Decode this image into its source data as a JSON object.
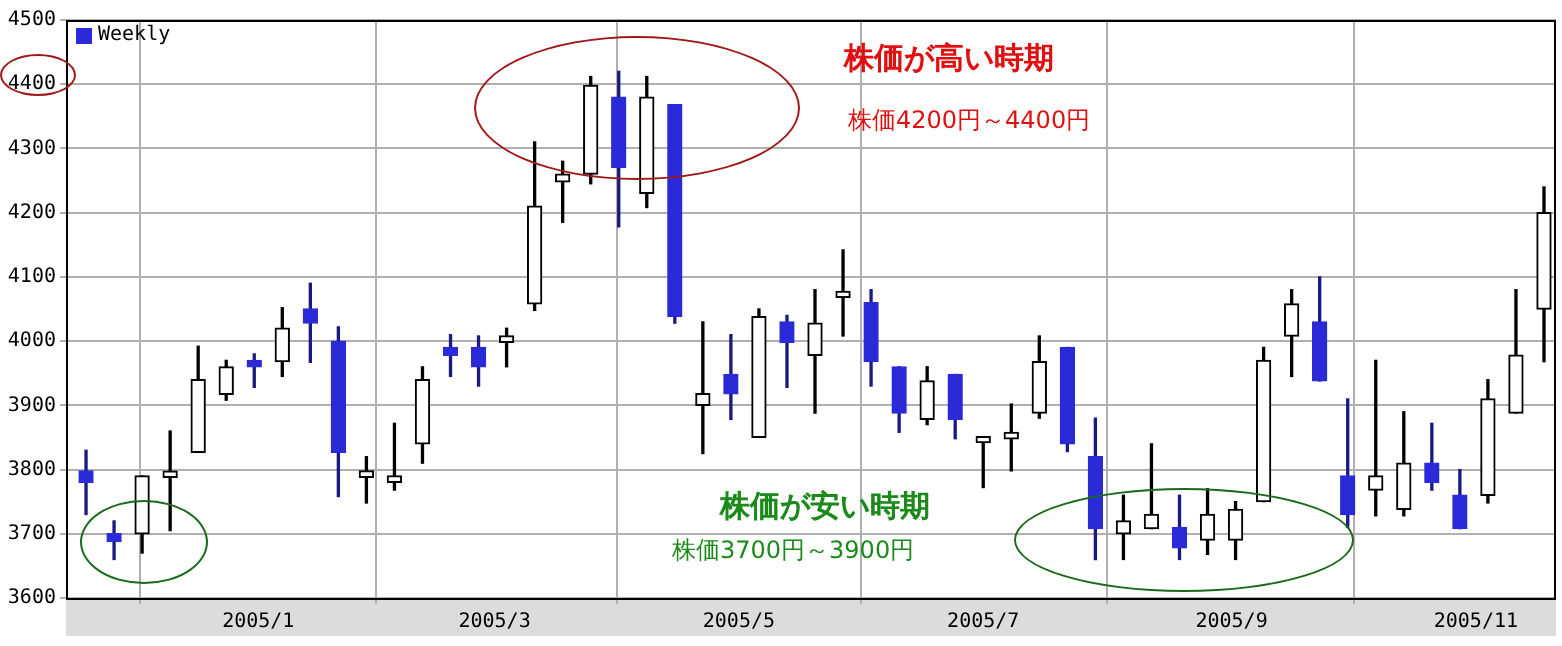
{
  "chart_data": {
    "type": "candlestick",
    "x": [
      "2004-11-19",
      "2004-11-26",
      "2004-12-03",
      "2004-12-10",
      "2004-12-17",
      "2004-12-24",
      "2004-12-31",
      "2005-01-07",
      "2005-01-14",
      "2005-01-21",
      "2005-01-28",
      "2005-02-04",
      "2005-02-11",
      "2005-02-18",
      "2005-02-25",
      "2005-03-04",
      "2005-03-11",
      "2005-03-18",
      "2005-03-25",
      "2005-04-01",
      "2005-04-08",
      "2005-04-15",
      "2005-04-22",
      "2005-04-29",
      "2005-05-06",
      "2005-05-13",
      "2005-05-20",
      "2005-05-27",
      "2005-06-03",
      "2005-06-10",
      "2005-06-17",
      "2005-06-24",
      "2005-07-01",
      "2005-07-08",
      "2005-07-15",
      "2005-07-22",
      "2005-07-29",
      "2005-08-05",
      "2005-08-12",
      "2005-08-19",
      "2005-08-26",
      "2005-09-02",
      "2005-09-09",
      "2005-09-16",
      "2005-09-23",
      "2005-09-30",
      "2005-10-07",
      "2005-10-14",
      "2005-10-21",
      "2005-10-28",
      "2005-11-04",
      "2005-11-11",
      "2005-11-18"
    ],
    "series": [
      {
        "name": "Weekly",
        "color": "#2a2ad8",
        "colors": [
          "#2a2ad8",
          "#2a2ad8",
          "#000000",
          "#000000",
          "#000000",
          "#000000",
          "#2a2ad8",
          "#000000",
          "#2a2ad8",
          "#2a2ad8",
          "#000000",
          "#000000",
          "#000000",
          "#2a2ad8",
          "#2a2ad8",
          "#000000",
          "#000000",
          "#000000",
          "#000000",
          "#2a2ad8",
          "#000000",
          "#2a2ad8",
          "#000000",
          "#2a2ad8",
          "#000000",
          "#2a2ad8",
          "#000000",
          "#000000",
          "#2a2ad8",
          "#2a2ad8",
          "#000000",
          "#2a2ad8",
          "#000000",
          "#000000",
          "#000000",
          "#2a2ad8",
          "#2a2ad8",
          "#000000",
          "#000000",
          "#2a2ad8",
          "#000000",
          "#000000",
          "#000000",
          "#000000",
          "#2a2ad8",
          "#2a2ad8",
          "#000000",
          "#000000",
          "#2a2ad8",
          "#2a2ad8",
          "#000000",
          "#000000",
          "#000000"
        ],
        "ohlc": [
          [
            3798,
            3830,
            3730,
            3780
          ],
          [
            3700,
            3720,
            3660,
            3688
          ],
          [
            3700,
            3790,
            3670,
            3790
          ],
          [
            3788,
            3860,
            3705,
            3792
          ],
          [
            3827,
            3992,
            3827,
            3940
          ],
          [
            3917,
            3970,
            3908,
            3960
          ],
          [
            3970,
            3980,
            3928,
            3960
          ],
          [
            3968,
            4052,
            3945,
            4020
          ],
          [
            4050,
            4090,
            3967,
            4028
          ],
          [
            4000,
            4022,
            3758,
            3827
          ],
          [
            3788,
            3820,
            3748,
            3798
          ],
          [
            3780,
            3872,
            3768,
            3790
          ],
          [
            3840,
            3960,
            3810,
            3940
          ],
          [
            3990,
            4010,
            3945,
            3978
          ],
          [
            3990,
            4008,
            3930,
            3960
          ],
          [
            3998,
            4020,
            3960,
            4008
          ],
          [
            4058,
            4310,
            4048,
            4210
          ],
          [
            4248,
            4280,
            4185,
            4260
          ],
          [
            4260,
            4412,
            4245,
            4398
          ],
          [
            4380,
            4420,
            4178,
            4270
          ],
          [
            4230,
            4412,
            4208,
            4380
          ],
          [
            4368,
            4368,
            4028,
            4038
          ],
          [
            3900,
            4030,
            3825,
            3918
          ],
          [
            3948,
            4010,
            3878,
            3918
          ],
          [
            3850,
            4050,
            3850,
            4038
          ],
          [
            4030,
            4040,
            3928,
            3998
          ],
          [
            3978,
            4080,
            3888,
            4028
          ],
          [
            4068,
            4142,
            4008,
            4072
          ],
          [
            4060,
            4080,
            3930,
            3968
          ],
          [
            3960,
            3960,
            3858,
            3888
          ],
          [
            3878,
            3960,
            3870,
            3938
          ],
          [
            3948,
            3948,
            3848,
            3878
          ],
          [
            3842,
            3850,
            3772,
            3850
          ],
          [
            3848,
            3902,
            3798,
            3858
          ],
          [
            3888,
            4008,
            3880,
            3968
          ],
          [
            3990,
            3990,
            3828,
            3840
          ],
          [
            3820,
            3880,
            3660,
            3708
          ],
          [
            3700,
            3760,
            3660,
            3720
          ],
          [
            3708,
            3840,
            3708,
            3730
          ],
          [
            3710,
            3760,
            3660,
            3678
          ],
          [
            3690,
            3770,
            3668,
            3730
          ],
          [
            3690,
            3750,
            3660,
            3738
          ],
          [
            3750,
            3990,
            3750,
            3970
          ],
          [
            4008,
            4080,
            3945,
            4058
          ],
          [
            4030,
            4100,
            3938,
            3938
          ],
          [
            3790,
            3910,
            3710,
            3730
          ],
          [
            3768,
            3970,
            3728,
            3790
          ],
          [
            3738,
            3890,
            3728,
            3810
          ],
          [
            3810,
            3872,
            3768,
            3780
          ],
          [
            3760,
            3800,
            3708,
            3708
          ],
          [
            3760,
            3940,
            3748,
            3910
          ],
          [
            3888,
            4080,
            3888,
            3978
          ],
          [
            4050,
            4240,
            3968,
            4200
          ]
        ]
      }
    ],
    "xlim": [
      "2004-11-14",
      "2005-11-21"
    ],
    "xticks": [
      {
        "value": "2005-01",
        "label": "2005/1"
      },
      {
        "value": "2005-03",
        "label": "2005/3"
      },
      {
        "value": "2005-05",
        "label": "2005/5"
      },
      {
        "value": "2005-07",
        "label": "2005/7"
      },
      {
        "value": "2005-09",
        "label": "2005/9"
      },
      {
        "value": "2005-11",
        "label": "2005/11"
      }
    ],
    "ylim": [
      3600,
      4500
    ],
    "yticks": [
      3600,
      3700,
      3800,
      3900,
      4000,
      4100,
      4200,
      4300,
      4400,
      4500
    ],
    "grid": true,
    "legend": "top left",
    "annotations": [
      "株価が高い時期",
      "株価4200円～4400円",
      "株価が安い時期",
      "株価3700円～3900円"
    ]
  }
}
